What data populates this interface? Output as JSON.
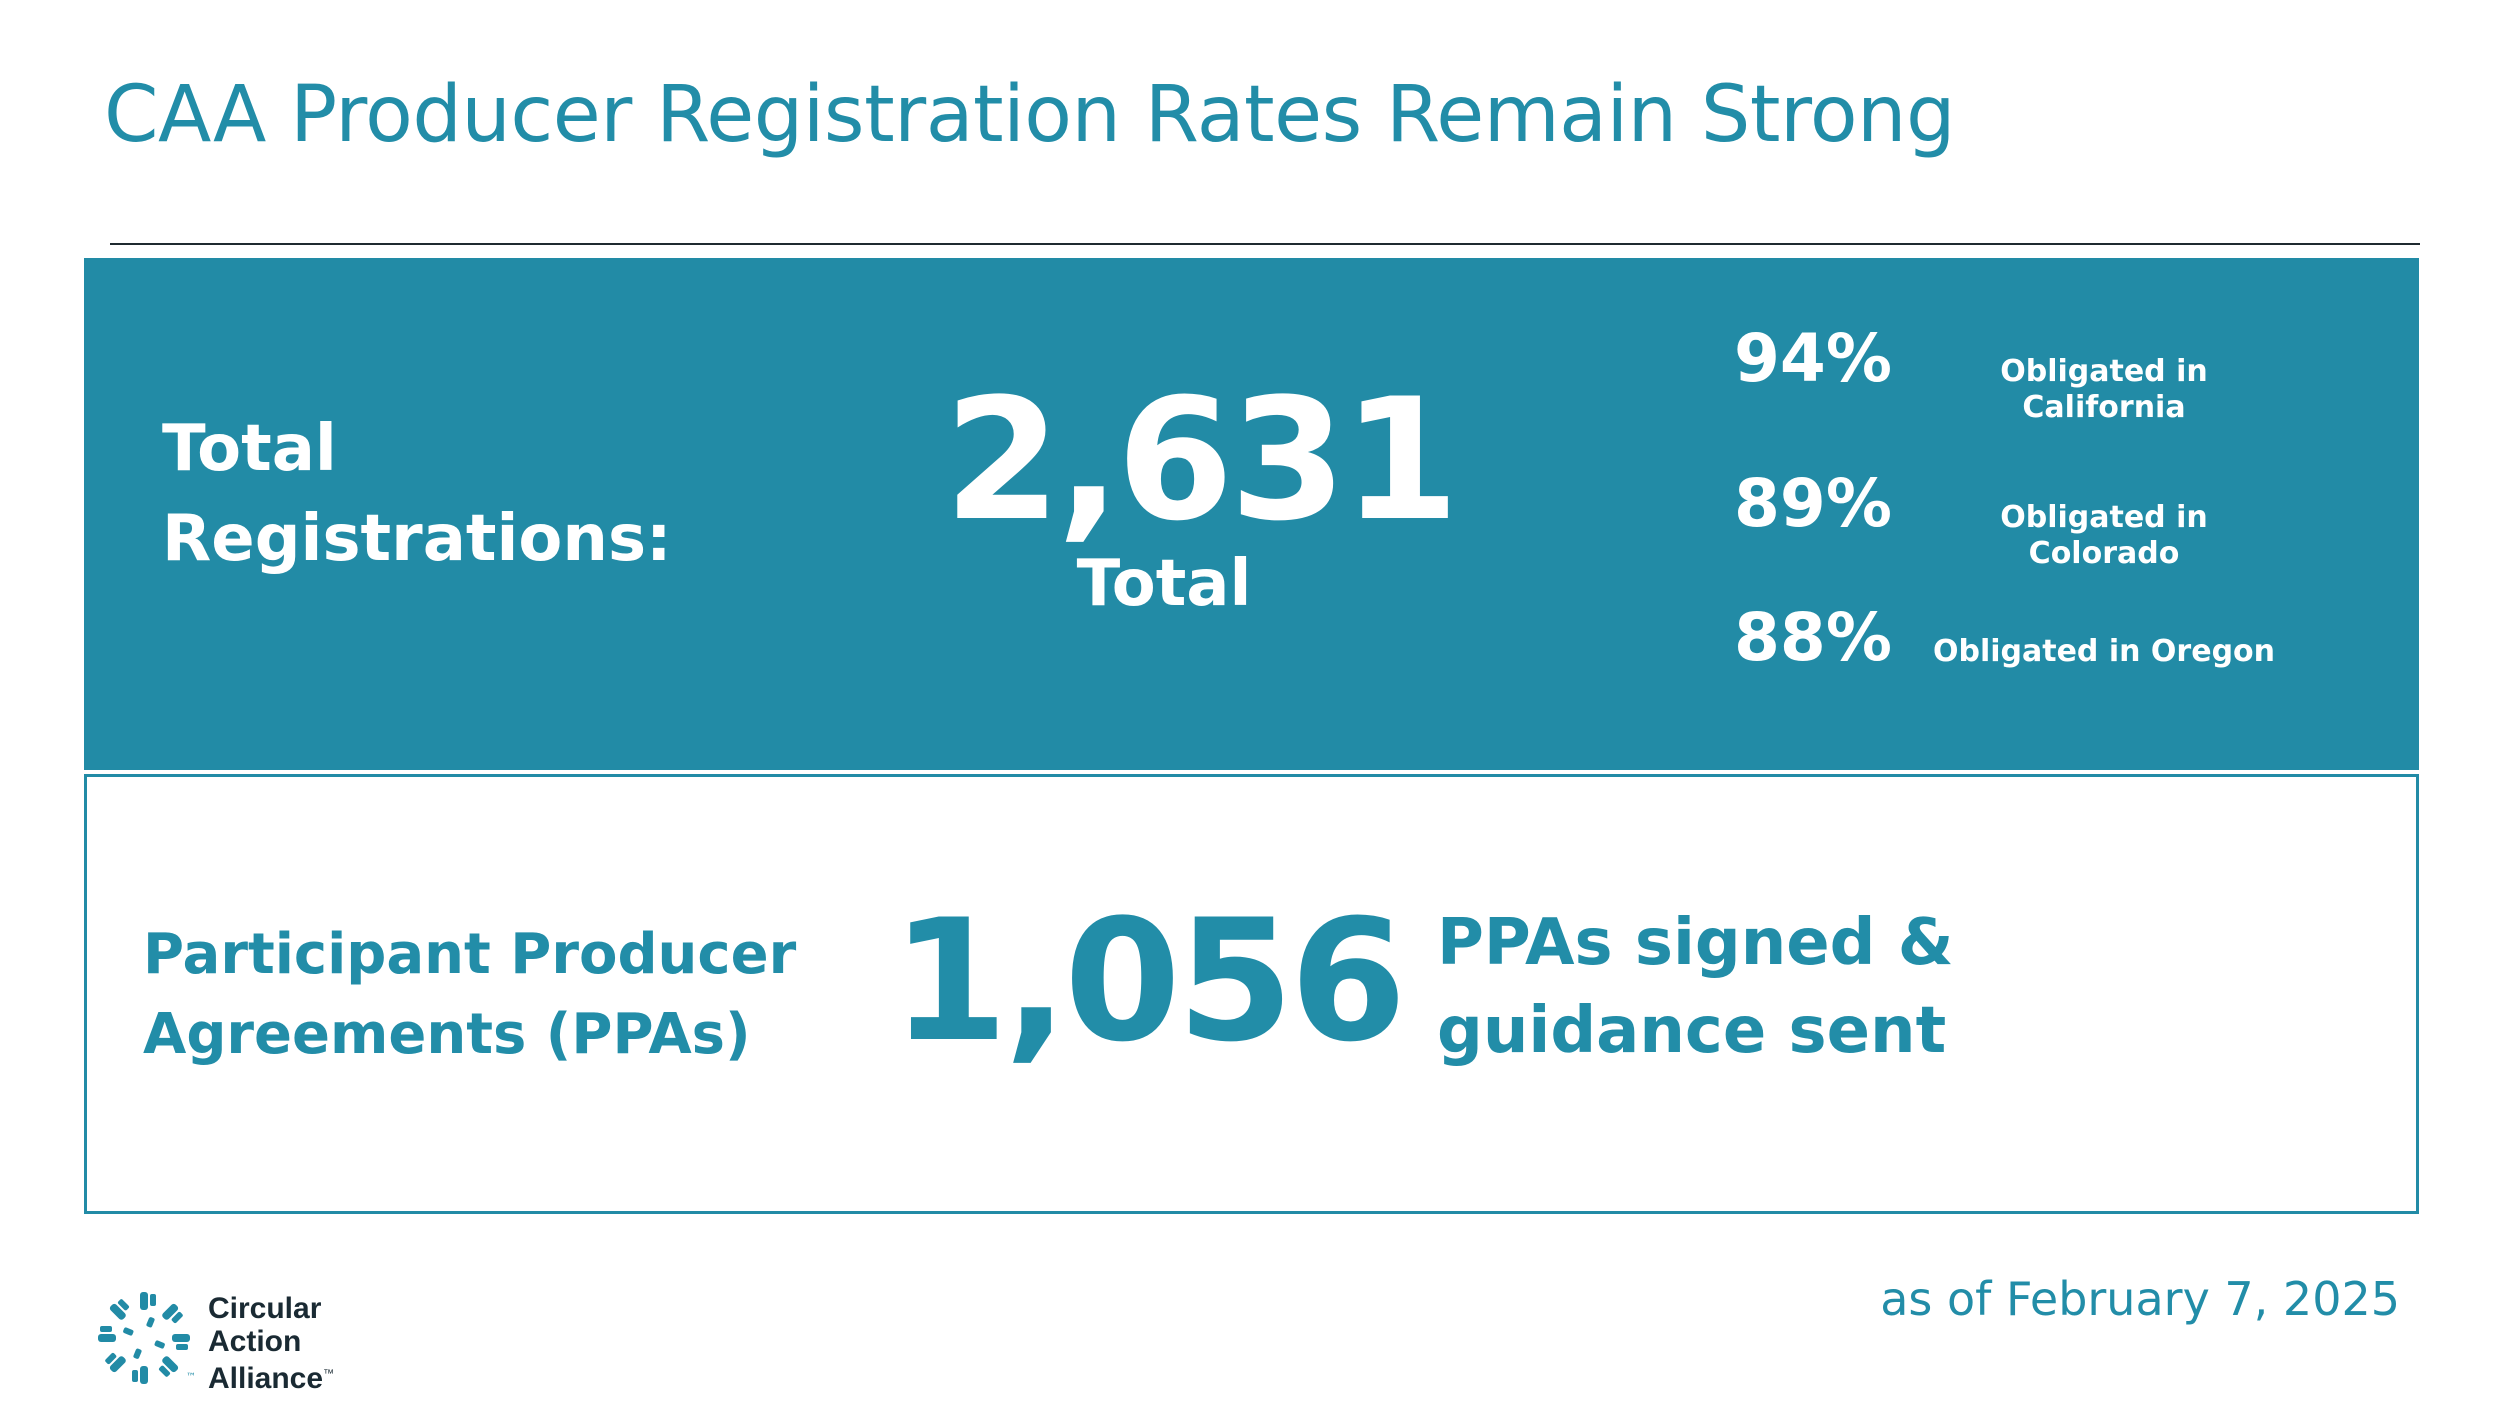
{
  "title": "CAA Producer Registration Rates Remain Strong",
  "registrations": {
    "label_line1": "Total",
    "label_line2": "Registrations:",
    "number": "2,631",
    "sub": "Total",
    "stats": [
      {
        "pct": "94%",
        "label": "Obligated in California"
      },
      {
        "pct": "89%",
        "label": "Obligated in Colorado"
      },
      {
        "pct": "88%",
        "label": "Obligated in Oregon"
      }
    ]
  },
  "ppa": {
    "label_line1": "Participant Producer",
    "label_line2": "Agreements (PPAs)",
    "number": "1,056",
    "desc_line1": "PPAs signed &",
    "desc_line2": "guidance sent"
  },
  "footer": {
    "logo_line1": "Circular",
    "logo_line2": "Action",
    "logo_line3": "Alliance",
    "tm": "™",
    "date": "as of February 7, 2025"
  },
  "colors": {
    "teal": "#228ba6",
    "title_teal": "#228da8",
    "white": "#ffffff",
    "dark": "#1a2a33"
  },
  "icons": {
    "logo": "circular-action-alliance-logo"
  }
}
